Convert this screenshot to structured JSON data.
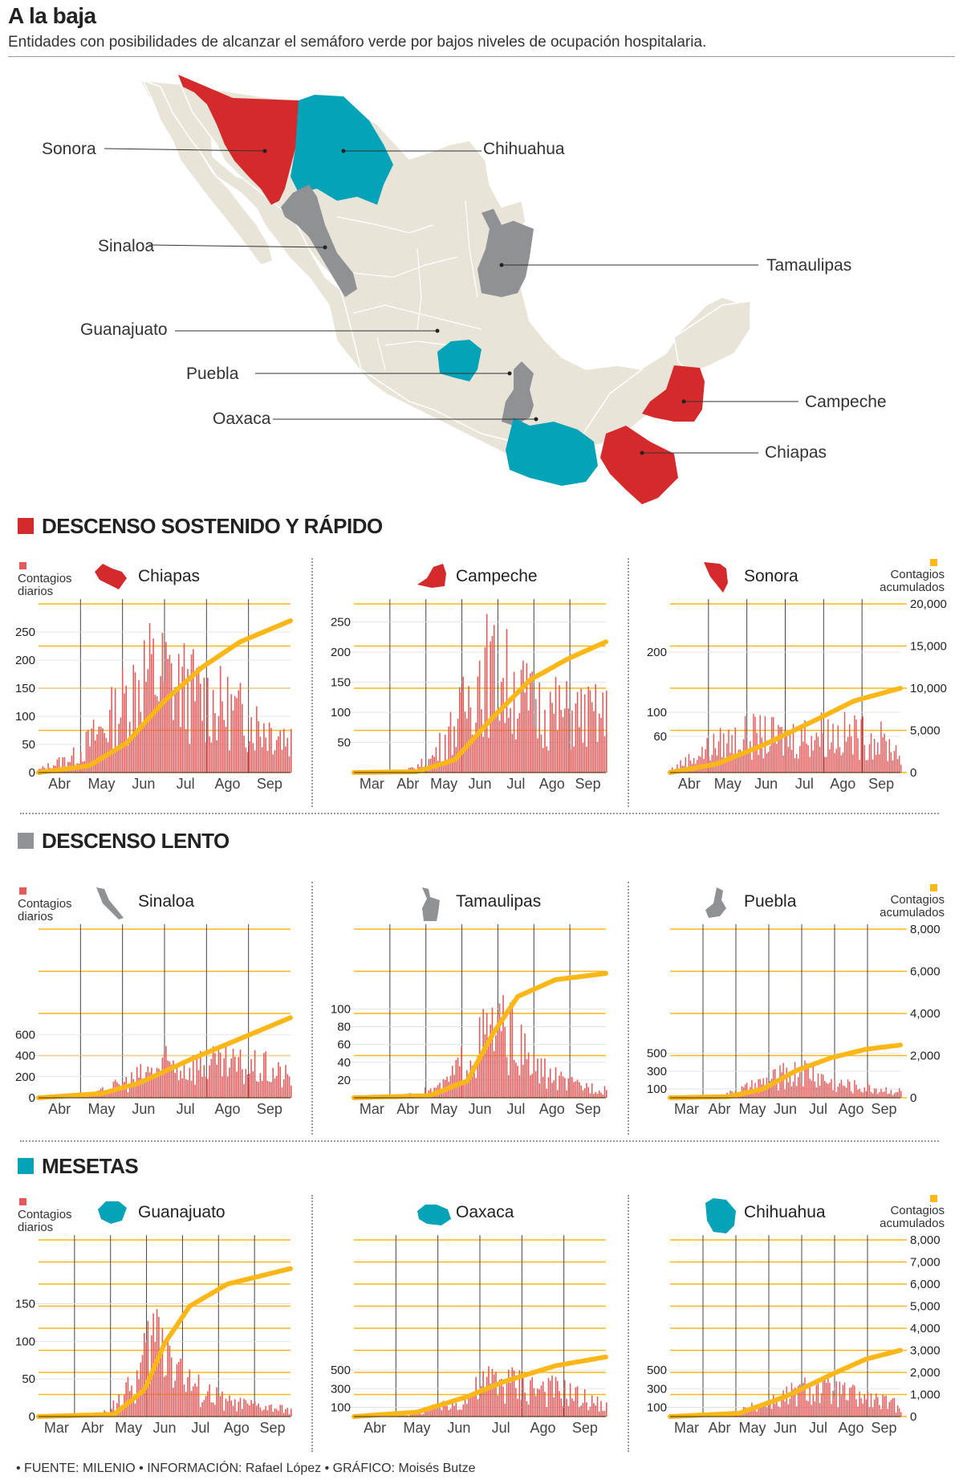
{
  "title": "A la baja",
  "subtitle": "Entidades con posibilidades de alcanzar el semáforo verde por bajos niveles de ocupación hospitalaria.",
  "colors": {
    "red": "#d42a2c",
    "gray": "#8f9195",
    "teal": "#05a3b8",
    "land": "#e8e4d8",
    "bars": "#e35a5a",
    "cumulative": "#fbb718"
  },
  "map": {
    "labels": [
      {
        "name": "Sonora",
        "group": "red"
      },
      {
        "name": "Chihuahua",
        "group": "teal"
      },
      {
        "name": "Sinaloa",
        "group": "gray"
      },
      {
        "name": "Tamaulipas",
        "group": "gray"
      },
      {
        "name": "Guanajuato",
        "group": "teal"
      },
      {
        "name": "Campeche",
        "group": "red"
      },
      {
        "name": "Puebla",
        "group": "gray"
      },
      {
        "name": "Chiapas",
        "group": "red"
      },
      {
        "name": "Oaxaca",
        "group": "teal"
      }
    ]
  },
  "sections": [
    {
      "label": "DESCENSO SOSTENIDO Y RÁPIDO",
      "color": "#d42a2c"
    },
    {
      "label": "DESCENSO LENTO",
      "color": "#8f9195"
    },
    {
      "label": "MESETAS",
      "color": "#05a3b8"
    }
  ],
  "axis_texts": {
    "left": "Contagios diarios",
    "right": "Contagios acumulados"
  },
  "chart_data": [
    {
      "type": "bar",
      "state": "Chiapas",
      "group": "red",
      "x_ticks": [
        "Abr",
        "May",
        "Jun",
        "Jul",
        "Ago",
        "Sep"
      ],
      "y_left_ticks": [
        0,
        50,
        100,
        150,
        200,
        250
      ],
      "y_left_max": 300,
      "y_right_max": 20000,
      "daily_profile": [
        [
          0,
          5
        ],
        [
          0.15,
          30
        ],
        [
          0.3,
          100
        ],
        [
          0.42,
          175
        ],
        [
          0.5,
          165
        ],
        [
          0.65,
          130
        ],
        [
          0.8,
          100
        ],
        [
          1,
          60
        ]
      ],
      "cumulative_profile": [
        [
          0,
          0
        ],
        [
          0.2,
          800
        ],
        [
          0.35,
          3500
        ],
        [
          0.5,
          8500
        ],
        [
          0.65,
          12500
        ],
        [
          0.8,
          15500
        ],
        [
          1,
          18000
        ]
      ]
    },
    {
      "type": "bar",
      "state": "Campeche",
      "group": "red",
      "x_ticks": [
        "Mar",
        "Abr",
        "May",
        "Jun",
        "Jul",
        "Ago",
        "Sep"
      ],
      "y_left_ticks": [
        50,
        100,
        150,
        200,
        250
      ],
      "y_left_max": 280,
      "y_right_max": 20000,
      "daily_profile": [
        [
          0,
          0
        ],
        [
          0.2,
          2
        ],
        [
          0.3,
          20
        ],
        [
          0.42,
          90
        ],
        [
          0.5,
          170
        ],
        [
          0.6,
          150
        ],
        [
          0.7,
          110
        ],
        [
          0.85,
          95
        ],
        [
          1,
          90
        ]
      ],
      "cumulative_profile": [
        [
          0,
          0
        ],
        [
          0.25,
          100
        ],
        [
          0.4,
          1500
        ],
        [
          0.55,
          6500
        ],
        [
          0.7,
          11000
        ],
        [
          0.85,
          13500
        ],
        [
          1,
          15500
        ]
      ]
    },
    {
      "type": "bar",
      "state": "Sonora",
      "group": "red",
      "x_ticks": [
        "Abr",
        "May",
        "Jun",
        "Jul",
        "Ago",
        "Sep"
      ],
      "y_left_ticks": [
        60,
        100,
        200
      ],
      "y_left_max": 280,
      "y_right_ticks": [
        0,
        5000,
        10000,
        15000,
        20000
      ],
      "y_right_max": 20000,
      "daily_profile": [
        [
          0,
          5
        ],
        [
          0.2,
          45
        ],
        [
          0.35,
          60
        ],
        [
          0.5,
          55
        ],
        [
          0.65,
          65
        ],
        [
          0.8,
          60
        ],
        [
          0.9,
          55
        ],
        [
          1,
          30
        ]
      ],
      "cumulative_profile": [
        [
          0,
          0
        ],
        [
          0.2,
          1000
        ],
        [
          0.4,
          3200
        ],
        [
          0.6,
          5800
        ],
        [
          0.8,
          8500
        ],
        [
          1,
          10000
        ]
      ]
    },
    {
      "type": "bar",
      "state": "Sinaloa",
      "group": "gray",
      "x_ticks": [
        "Abr",
        "May",
        "Jun",
        "Jul",
        "Ago",
        "Sep"
      ],
      "y_left_ticks": [
        0,
        200,
        400,
        600
      ],
      "y_left_max": 1600,
      "y_right_max": 8000,
      "daily_profile": [
        [
          0,
          0
        ],
        [
          0.2,
          15
        ],
        [
          0.35,
          150
        ],
        [
          0.5,
          300
        ],
        [
          0.65,
          310
        ],
        [
          0.8,
          290
        ],
        [
          0.9,
          270
        ],
        [
          1,
          180
        ]
      ],
      "cumulative_profile": [
        [
          0,
          0
        ],
        [
          0.25,
          200
        ],
        [
          0.4,
          700
        ],
        [
          0.6,
          1800
        ],
        [
          0.8,
          2800
        ],
        [
          1,
          3800
        ]
      ]
    },
    {
      "type": "bar",
      "state": "Tamaulipas",
      "group": "gray",
      "x_ticks": [
        "Mar",
        "Abr",
        "May",
        "Jun",
        "Jul",
        "Ago",
        "Sep"
      ],
      "y_left_ticks": [
        20,
        40,
        60,
        80,
        100
      ],
      "y_left_max": 190,
      "y_right_max": 8000,
      "daily_profile": [
        [
          0,
          0
        ],
        [
          0.2,
          2
        ],
        [
          0.35,
          12
        ],
        [
          0.45,
          45
        ],
        [
          0.55,
          75
        ],
        [
          0.62,
          70
        ],
        [
          0.7,
          35
        ],
        [
          0.85,
          15
        ],
        [
          1,
          10
        ]
      ],
      "cumulative_profile": [
        [
          0,
          0
        ],
        [
          0.3,
          100
        ],
        [
          0.45,
          800
        ],
        [
          0.55,
          3000
        ],
        [
          0.65,
          4800
        ],
        [
          0.8,
          5600
        ],
        [
          1,
          5900
        ]
      ]
    },
    {
      "type": "bar",
      "state": "Puebla",
      "group": "gray",
      "x_ticks": [
        "Mar",
        "Abr",
        "May",
        "Jun",
        "Jul",
        "Ago",
        "Sep"
      ],
      "y_left_ticks": [
        100,
        300,
        500
      ],
      "y_left_max": 1900,
      "y_right_ticks": [
        0,
        2000,
        4000,
        6000,
        8000
      ],
      "y_right_max": 8000,
      "daily_profile": [
        [
          0,
          0
        ],
        [
          0.2,
          5
        ],
        [
          0.35,
          120
        ],
        [
          0.5,
          250
        ],
        [
          0.6,
          290
        ],
        [
          0.7,
          160
        ],
        [
          0.85,
          110
        ],
        [
          1,
          70
        ]
      ],
      "cumulative_profile": [
        [
          0,
          0
        ],
        [
          0.25,
          50
        ],
        [
          0.4,
          400
        ],
        [
          0.55,
          1300
        ],
        [
          0.7,
          1900
        ],
        [
          0.85,
          2300
        ],
        [
          1,
          2500
        ]
      ]
    },
    {
      "type": "bar",
      "state": "Guanajuato",
      "group": "teal",
      "x_ticks": [
        "Mar",
        "Abr",
        "May",
        "Jun",
        "Jul",
        "Ago",
        "Sep"
      ],
      "y_left_ticks": [
        0,
        50,
        100,
        150
      ],
      "y_left_max": 235,
      "y_right_max": 8000,
      "daily_profile": [
        [
          0,
          0
        ],
        [
          0.25,
          3
        ],
        [
          0.38,
          40
        ],
        [
          0.46,
          110
        ],
        [
          0.52,
          95
        ],
        [
          0.6,
          40
        ],
        [
          0.75,
          18
        ],
        [
          1,
          8
        ]
      ],
      "cumulative_profile": [
        [
          0,
          0
        ],
        [
          0.3,
          100
        ],
        [
          0.42,
          1200
        ],
        [
          0.5,
          3300
        ],
        [
          0.6,
          5000
        ],
        [
          0.75,
          6000
        ],
        [
          1,
          6700
        ]
      ]
    },
    {
      "type": "bar",
      "state": "Oaxaca",
      "group": "teal",
      "x_ticks": [
        "Abr",
        "May",
        "Jun",
        "Jul",
        "Ago",
        "Sep"
      ],
      "y_left_ticks": [
        100,
        300,
        500
      ],
      "y_left_max": 1900,
      "y_right_max": 8000,
      "daily_profile": [
        [
          0,
          0
        ],
        [
          0.2,
          15
        ],
        [
          0.4,
          130
        ],
        [
          0.55,
          390
        ],
        [
          0.7,
          320
        ],
        [
          0.85,
          250
        ],
        [
          1,
          100
        ]
      ],
      "cumulative_profile": [
        [
          0,
          0
        ],
        [
          0.25,
          200
        ],
        [
          0.45,
          900
        ],
        [
          0.6,
          1600
        ],
        [
          0.8,
          2300
        ],
        [
          1,
          2700
        ]
      ]
    },
    {
      "type": "bar",
      "state": "Chihuahua",
      "group": "teal",
      "x_ticks": [
        "Mar",
        "Abr",
        "May",
        "Jun",
        "Jul",
        "Ago",
        "Sep"
      ],
      "y_left_ticks": [
        100,
        300,
        500
      ],
      "y_left_max": 1900,
      "y_right_ticks": [
        0,
        1000,
        2000,
        3000,
        4000,
        5000,
        6000,
        7000,
        8000
      ],
      "y_right_max": 8000,
      "daily_profile": [
        [
          0,
          0
        ],
        [
          0.25,
          20
        ],
        [
          0.45,
          160
        ],
        [
          0.6,
          290
        ],
        [
          0.75,
          240
        ],
        [
          0.9,
          160
        ],
        [
          1,
          110
        ]
      ],
      "cumulative_profile": [
        [
          0,
          0
        ],
        [
          0.3,
          150
        ],
        [
          0.5,
          900
        ],
        [
          0.7,
          1900
        ],
        [
          0.85,
          2600
        ],
        [
          1,
          3000
        ]
      ]
    }
  ],
  "footer": "• FUENTE: MILENIO • INFORMACIÓN: Rafael López • GRÁFICO: Moisés Butze"
}
